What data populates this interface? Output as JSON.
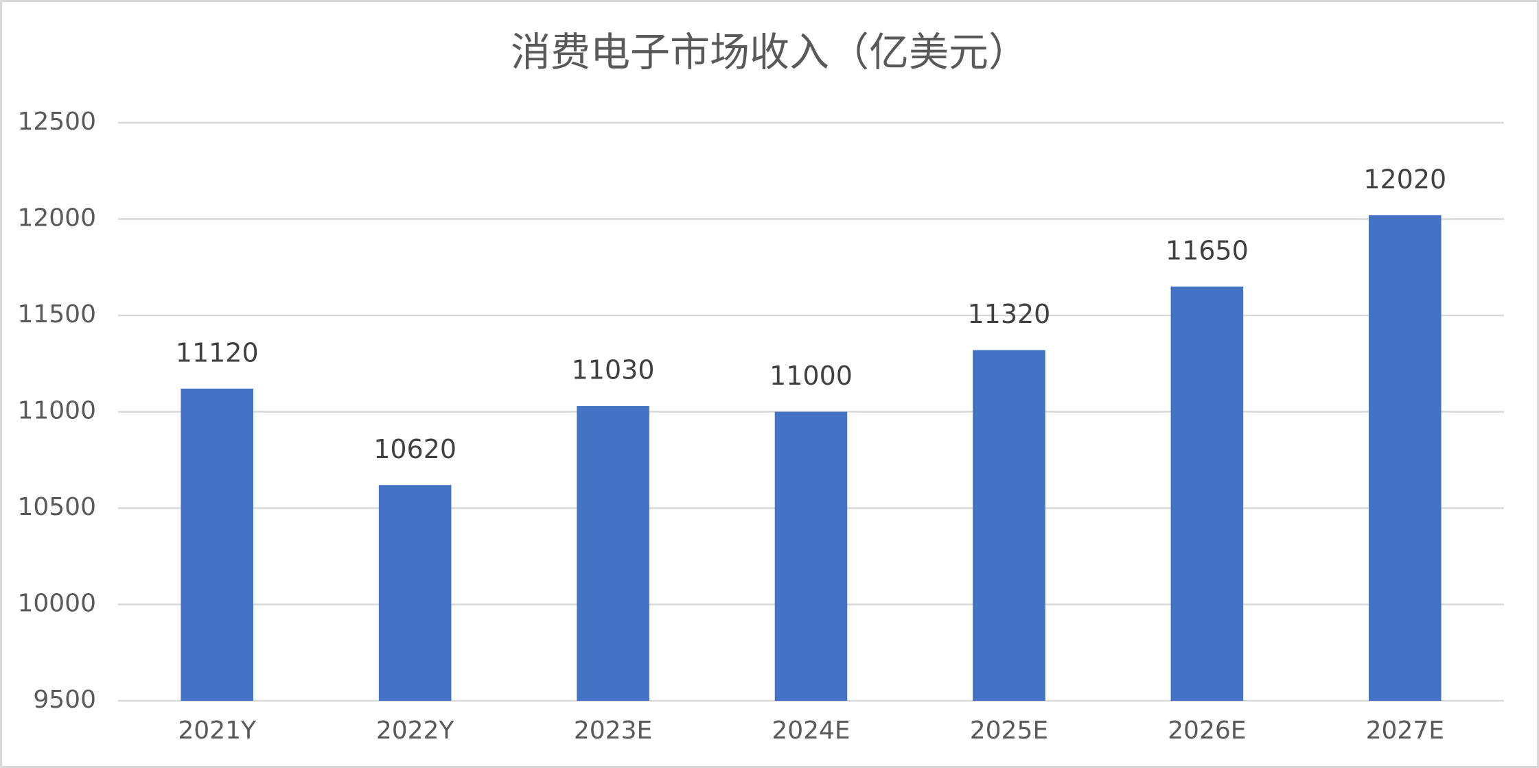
{
  "chart_data": {
    "type": "bar",
    "title": "消费电子市场收入（亿美元）",
    "categories": [
      "2021Y",
      "2022Y",
      "2023E",
      "2024E",
      "2025E",
      "2026E",
      "2027E"
    ],
    "values": [
      11120,
      10620,
      11030,
      11000,
      11320,
      11650,
      12020
    ],
    "color": "#4472c4",
    "ylim": [
      9500,
      12500
    ],
    "yticks": [
      9500,
      10000,
      10500,
      11000,
      11500,
      12000,
      12500
    ],
    "grid": true,
    "data_labels": true
  }
}
